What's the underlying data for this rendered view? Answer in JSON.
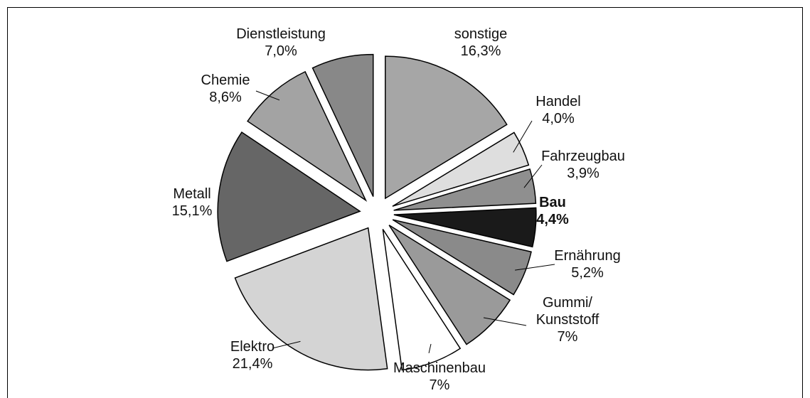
{
  "chart_data": {
    "type": "pie",
    "categories": [
      "sonstige",
      "Handel",
      "Fahrzeugbau",
      "Bau",
      "Ernährung",
      "Gummi/\nKunststoff",
      "Maschinenbau",
      "Elektro",
      "Metall",
      "Chemie",
      "Dienstleistung"
    ],
    "values": [
      16.3,
      4.0,
      3.9,
      4.4,
      5.2,
      7,
      7,
      21.4,
      15.1,
      8.6,
      7.0
    ],
    "value_labels": [
      "16,3%",
      "4,0%",
      "3,9%",
      "4,4%",
      "5,2%",
      "7%",
      "7%",
      "21,4%",
      "15,1%",
      "8,6%",
      "7,0%"
    ],
    "colors": [
      "#a6a6a6",
      "#dedede",
      "#8f8f8f",
      "#1a1a1a",
      "#8a8a8a",
      "#9a9a9a",
      "#ffffff",
      "#d4d4d4",
      "#666666",
      "#a3a3a3",
      "#888888"
    ],
    "highlight": "Bau"
  }
}
